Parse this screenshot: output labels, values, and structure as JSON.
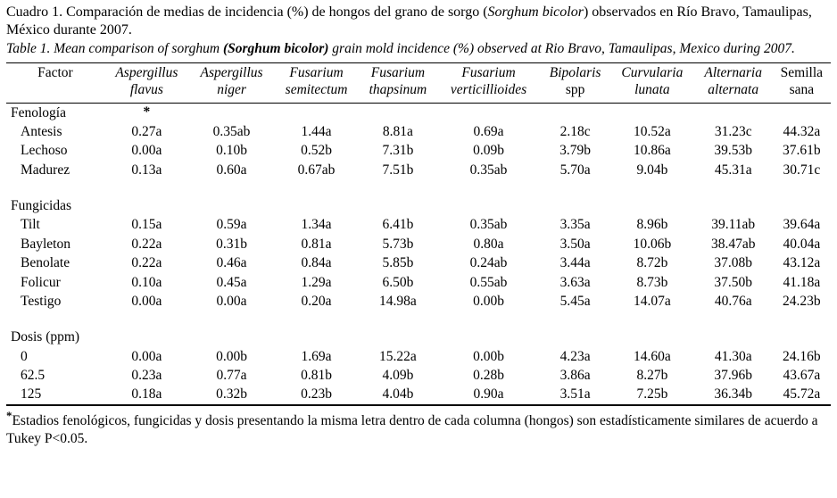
{
  "caption_es": {
    "part1": "Cuadro 1. Comparación de medias de incidencia (%) de hongos del grano de sorgo (",
    "species": "Sorghum bicolor",
    "part2": ") observados en Río Bravo, Tamaulipas, México durante 2007."
  },
  "caption_en": {
    "part1": "Table 1. Mean comparison of sorghum ",
    "species": "(Sorghum bicolor)",
    "part2": " grain mold incidence (%) observed at Rio Bravo, Tamaulipas, Mexico during 2007."
  },
  "table": {
    "headers": [
      {
        "line1": "Factor",
        "line2": "",
        "italic": false
      },
      {
        "line1": "Aspergillus",
        "line2": "flavus",
        "italic": true
      },
      {
        "line1": "Aspergillus",
        "line2": "niger",
        "italic": true
      },
      {
        "line1": "Fusarium",
        "line2": "semitectum",
        "italic": true
      },
      {
        "line1": "Fusarium",
        "line2": "thapsinum",
        "italic": true
      },
      {
        "line1": "Fusarium",
        "line2": "verticillioides",
        "italic": true
      },
      {
        "line1": "Bipolaris",
        "line2": "spp",
        "italic": true,
        "line2_roman": true
      },
      {
        "line1": "Curvularia",
        "line2": "lunata",
        "italic": true
      },
      {
        "line1": "Alternaria",
        "line2": "alternata",
        "italic": true
      },
      {
        "line1": "Semilla",
        "line2": "sana",
        "italic": false
      }
    ],
    "sections": [
      {
        "label": "Fenología",
        "label_note": "*",
        "rows": [
          {
            "factor": "Antesis",
            "values": [
              "0.27a",
              "0.35ab",
              "1.44a",
              "8.81a",
              "0.69a",
              "2.18c",
              "10.52a",
              "31.23c",
              "44.32a"
            ]
          },
          {
            "factor": "Lechoso",
            "values": [
              "0.00a",
              "0.10b",
              "0.52b",
              "7.31b",
              "0.09b",
              "3.79b",
              "10.86a",
              "39.53b",
              "37.61b"
            ]
          },
          {
            "factor": "Madurez",
            "values": [
              "0.13a",
              "0.60a",
              "0.67ab",
              "7.51b",
              "0.35ab",
              "5.70a",
              "9.04b",
              "45.31a",
              "30.71c"
            ]
          }
        ]
      },
      {
        "label": "Fungicidas",
        "label_note": "",
        "rows": [
          {
            "factor": "Tilt",
            "values": [
              "0.15a",
              "0.59a",
              "1.34a",
              "6.41b",
              "0.35ab",
              "3.35a",
              "8.96b",
              "39.11ab",
              "39.64a"
            ]
          },
          {
            "factor": "Bayleton",
            "values": [
              "0.22a",
              "0.31b",
              "0.81a",
              "5.73b",
              "0.80a",
              "3.50a",
              "10.06b",
              "38.47ab",
              "40.04a"
            ]
          },
          {
            "factor": "Benolate",
            "values": [
              "0.22a",
              "0.46a",
              "0.84a",
              "5.85b",
              "0.24ab",
              "3.44a",
              "8.72b",
              "37.08b",
              "43.12a"
            ]
          },
          {
            "factor": "Folicur",
            "values": [
              "0.10a",
              "0.45a",
              "1.29a",
              "6.50b",
              "0.55ab",
              "3.63a",
              "8.73b",
              "37.50b",
              "41.18a"
            ]
          },
          {
            "factor": "Testigo",
            "values": [
              "0.00a",
              "0.00a",
              "0.20a",
              "14.98a",
              "0.00b",
              "5.45a",
              "14.07a",
              "40.76a",
              "24.23b"
            ]
          }
        ]
      },
      {
        "label": "Dosis (ppm)",
        "label_note": "",
        "rows": [
          {
            "factor": "0",
            "values": [
              "0.00a",
              "0.00b",
              "1.69a",
              "15.22a",
              "0.00b",
              "4.23a",
              "14.60a",
              "41.30a",
              "24.16b"
            ]
          },
          {
            "factor": "62.5",
            "values": [
              "0.23a",
              "0.77a",
              "0.81b",
              "4.09b",
              "0.28b",
              "3.86a",
              "8.27b",
              "37.96b",
              "43.67a"
            ]
          },
          {
            "factor": "125",
            "values": [
              "0.18a",
              "0.32b",
              "0.23b",
              "4.04b",
              "0.90a",
              "3.51a",
              "7.25b",
              "36.34b",
              "45.72a"
            ]
          }
        ]
      }
    ]
  },
  "footnote": {
    "star": "*",
    "text": "Estadios fenológicos, fungicidas y dosis presentando la misma letra dentro de cada columna (hongos) son estadísticamente similares de acuerdo a Tukey P<0.05."
  }
}
